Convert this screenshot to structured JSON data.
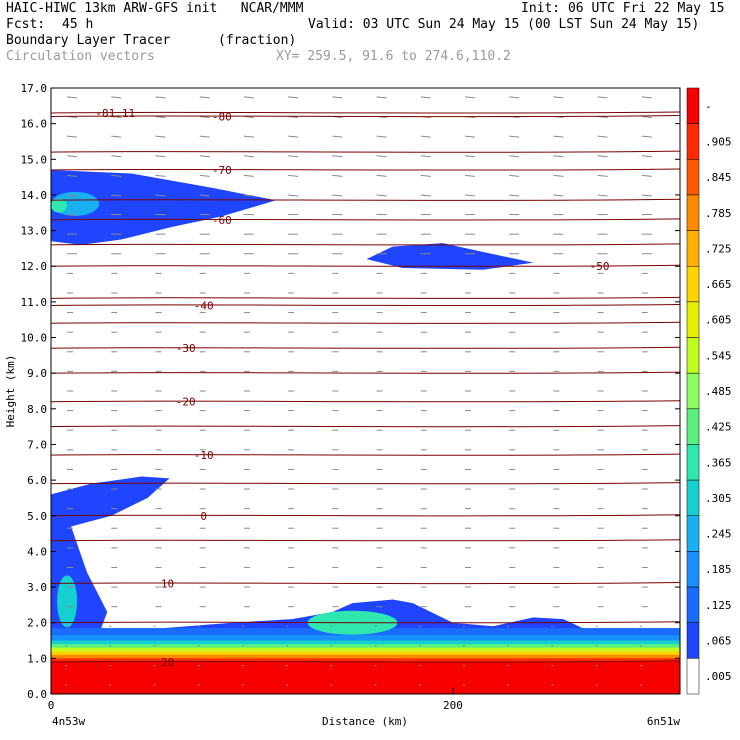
{
  "header": {
    "title_left": "HAIC-HIWC 13km ARW-GFS init   NCAR/MMM",
    "init": "Init: 06 UTC Fri 22 May 15",
    "fcst_label": "Fcst:",
    "fcst_value": "45 h",
    "valid": "Valid: 03 UTC Sun 24 May 15 (00 LST Sun 24 May 15)",
    "field": "Boundary Layer Tracer",
    "units": "(fraction)",
    "vectors": "Circulation vectors",
    "xy": "XY= 259.5, 91.6 to 274.6,110.2"
  },
  "chart_data": {
    "type": "heatmap",
    "ylabel": "Height (km)",
    "xlabel": "Distance (km)",
    "xlim": [
      0,
      313
    ],
    "ylim": [
      0,
      17
    ],
    "y_ticks": [
      "0.0",
      "1.0",
      "2.0",
      "3.0",
      "4.0",
      "5.0",
      "6.0",
      "7.0",
      "8.0",
      "9.0",
      "10.0",
      "11.0",
      "12.0",
      "13.0",
      "14.0",
      "15.0",
      "16.0",
      "17.0"
    ],
    "x_ticks": [
      {
        "value": 0,
        "label": "0"
      },
      {
        "value": 200,
        "label": "200"
      }
    ],
    "x_end_labels": {
      "left": "4n53w",
      "right": "6n51w"
    },
    "colorbar": {
      "labels": [
        "-",
        ".905",
        ".845",
        ".785",
        ".725",
        ".665",
        ".605",
        ".545",
        ".485",
        ".425",
        ".365",
        ".305",
        ".245",
        ".185",
        ".125",
        ".065",
        ".005"
      ],
      "colors": [
        "#f60000",
        "#ff2a00",
        "#ff5a00",
        "#ff8a00",
        "#ffb000",
        "#ffd500",
        "#e7ee00",
        "#bfff20",
        "#8cff60",
        "#5af080",
        "#2ee8b0",
        "#14d0d0",
        "#18b0f0",
        "#1890ff",
        "#1a6cff",
        "#1f45ff",
        "#ffffff"
      ]
    },
    "isotherms": [
      {
        "y": 16.3,
        "label": "-81.11",
        "label_x": 32
      },
      {
        "y": 16.2,
        "label": "-80",
        "label_x": 85
      },
      {
        "y": 15.2,
        "label": "",
        "label_x": null
      },
      {
        "y": 14.7,
        "label": "-70",
        "label_x": 85
      },
      {
        "y": 13.85,
        "label": "",
        "label_x": null
      },
      {
        "y": 13.3,
        "label": "-60",
        "label_x": 85
      },
      {
        "y": 12.6,
        "label": "",
        "label_x": null
      },
      {
        "y": 12.0,
        "label": "-50",
        "label_x": 273
      },
      {
        "y": 11.1,
        "label": "",
        "label_x": null
      },
      {
        "y": 10.9,
        "label": "-40",
        "label_x": 76
      },
      {
        "y": 10.4,
        "label": "",
        "label_x": null
      },
      {
        "y": 9.7,
        "label": "-30",
        "label_x": 67
      },
      {
        "y": 9.0,
        "label": "",
        "label_x": null
      },
      {
        "y": 8.2,
        "label": "-20",
        "label_x": 67
      },
      {
        "y": 7.5,
        "label": "",
        "label_x": null
      },
      {
        "y": 6.7,
        "label": "-10",
        "label_x": 76
      },
      {
        "y": 5.9,
        "label": "",
        "label_x": null
      },
      {
        "y": 5.0,
        "label": "0",
        "label_x": 76
      },
      {
        "y": 4.3,
        "label": "",
        "label_x": null
      },
      {
        "y": 3.1,
        "label": "10",
        "label_x": 58
      },
      {
        "y": 2.0,
        "label": "",
        "label_x": null
      },
      {
        "y": 0.9,
        "label": "20",
        "label_x": 58
      }
    ],
    "plumes": [
      {
        "name": "upper-left-layer",
        "cells": [
          [
            0,
            14.7
          ],
          [
            40,
            14.6
          ],
          [
            80,
            14.2
          ],
          [
            112,
            13.85
          ],
          [
            85,
            13.4
          ],
          [
            60,
            13.1
          ],
          [
            35,
            12.75
          ],
          [
            15,
            12.6
          ],
          [
            0,
            12.7
          ]
        ]
      },
      {
        "name": "upper-mid-layer",
        "cells": [
          [
            157,
            12.2
          ],
          [
            170,
            12.55
          ],
          [
            195,
            12.65
          ],
          [
            215,
            12.4
          ],
          [
            240,
            12.1
          ],
          [
            215,
            11.9
          ],
          [
            175,
            11.95
          ]
        ]
      },
      {
        "name": "mid-left-plume",
        "cells": [
          [
            0,
            5.6
          ],
          [
            20,
            5.9
          ],
          [
            45,
            6.1
          ],
          [
            59,
            6.05
          ],
          [
            48,
            5.5
          ],
          [
            30,
            5.0
          ],
          [
            10,
            4.7
          ],
          [
            18,
            3.4
          ],
          [
            28,
            2.3
          ],
          [
            22,
            1.4
          ],
          [
            0,
            1.4
          ]
        ]
      },
      {
        "name": "boundary-layer",
        "cells": [
          [
            0,
            1.5
          ],
          [
            45,
            1.8
          ],
          [
            90,
            2.0
          ],
          [
            120,
            2.1
          ],
          [
            140,
            2.3
          ],
          [
            150,
            2.55
          ],
          [
            170,
            2.65
          ],
          [
            180,
            2.55
          ],
          [
            200,
            2.0
          ],
          [
            220,
            1.9
          ],
          [
            240,
            2.15
          ],
          [
            255,
            2.1
          ],
          [
            270,
            1.7
          ],
          [
            285,
            1.4
          ],
          [
            313,
            1.4
          ],
          [
            313,
            0
          ],
          [
            0,
            0
          ]
        ]
      }
    ]
  }
}
